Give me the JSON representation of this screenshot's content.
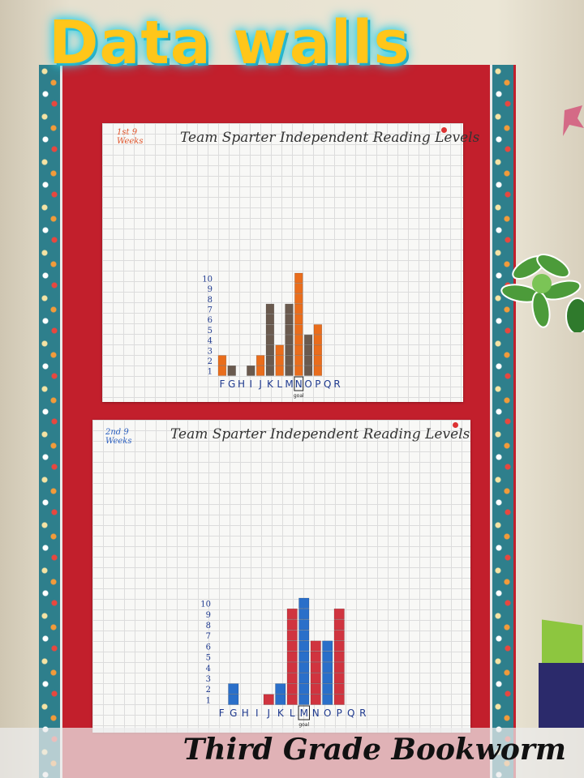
{
  "header": {
    "title": "Data walls"
  },
  "footer": {
    "credit": "Third Grade Bookworm"
  },
  "colors": {
    "board": "#c21f2c",
    "title": "#ffc61a",
    "orange": "#e96d1c",
    "brown": "#6a5a4e",
    "red": "#d0343f",
    "blue": "#2a6fc9",
    "axis_ink": "#1f3a8f"
  },
  "posters": [
    {
      "period": "1st 9 Weeks",
      "title": "Team Sparter Independent Reading Levels",
      "goal_note": "goal",
      "chart_data": {
        "type": "bar",
        "categories": [
          "F",
          "G",
          "H",
          "I",
          "J",
          "K",
          "L",
          "M",
          "N",
          "O",
          "P",
          "Q",
          "R"
        ],
        "goal_category": "N",
        "ylim": [
          0,
          10
        ],
        "y_ticks": [
          "1",
          "2",
          "3",
          "4",
          "5",
          "6",
          "7",
          "8",
          "9",
          "10"
        ],
        "bars": [
          {
            "cat": "F",
            "value": 2,
            "color": "orange"
          },
          {
            "cat": "G",
            "value": 1,
            "color": "brown"
          },
          {
            "cat": "I",
            "value": 1,
            "color": "brown"
          },
          {
            "cat": "J",
            "value": 2,
            "color": "orange"
          },
          {
            "cat": "K",
            "value": 7,
            "color": "brown"
          },
          {
            "cat": "L",
            "value": 3,
            "color": "orange"
          },
          {
            "cat": "M",
            "value": 7,
            "color": "brown"
          },
          {
            "cat": "N",
            "value": 10,
            "color": "orange"
          },
          {
            "cat": "O",
            "value": 4,
            "color": "brown"
          },
          {
            "cat": "P",
            "value": 5,
            "color": "orange"
          }
        ]
      }
    },
    {
      "period": "2nd 9 Weeks",
      "title": "Team Sparter Independent Reading Levels",
      "goal_note": "goal",
      "chart_data": {
        "type": "bar",
        "categories": [
          "F",
          "G",
          "H",
          "I",
          "J",
          "K",
          "L",
          "M",
          "N",
          "O",
          "P",
          "Q",
          "R"
        ],
        "goal_category": "M",
        "ylim": [
          0,
          10
        ],
        "y_ticks": [
          "1",
          "2",
          "3",
          "4",
          "5",
          "6",
          "7",
          "8",
          "9",
          "10"
        ],
        "bars": [
          {
            "cat": "G",
            "value": 2,
            "color": "blue"
          },
          {
            "cat": "J",
            "value": 1,
            "color": "red"
          },
          {
            "cat": "K",
            "value": 2,
            "color": "blue"
          },
          {
            "cat": "L",
            "value": 9,
            "color": "red"
          },
          {
            "cat": "M",
            "value": 10,
            "color": "blue"
          },
          {
            "cat": "N",
            "value": 6,
            "color": "red"
          },
          {
            "cat": "O",
            "value": 6,
            "color": "blue"
          },
          {
            "cat": "P",
            "value": 9,
            "color": "red"
          }
        ]
      }
    }
  ]
}
